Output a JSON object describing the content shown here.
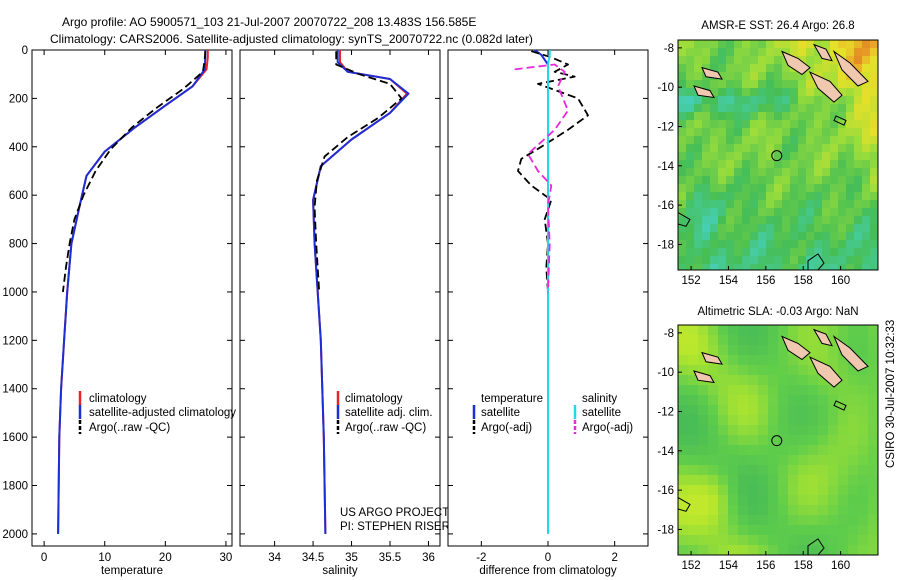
{
  "title": {
    "line1": "Argo profile: AO 5900571_103 21-Jul-2007 20070722_208 13.483S 156.585E",
    "line2": "Climatology: CARS2006. Satellite-adjusted climatology: synTS_20070722.nc (0.082d later)"
  },
  "credit": "CSIRO 30-Jul-2007 10:32:33",
  "project": {
    "line1": "US ARGO PROJECT",
    "line2": "PI: STEPHEN RISER"
  },
  "colors": {
    "clim": "#e8232a",
    "sat": "#1c2fd6",
    "argo": "#000000",
    "cyan": "#22d7e8",
    "magenta": "#e629d9"
  },
  "chart_data": [
    {
      "type": "line",
      "id": "temperature",
      "xlabel": "temperature",
      "xlim": [
        -2,
        31
      ],
      "xticks": [
        0,
        10,
        20,
        30
      ],
      "ylim": [
        2050,
        0
      ],
      "yticks": [
        0,
        200,
        400,
        600,
        800,
        1000,
        1200,
        1400,
        1600,
        1800,
        2000
      ],
      "legend": [
        "climatology",
        "satellite-adjusted climatology",
        "Argo(..raw -QC)"
      ],
      "series": [
        {
          "name": "climatology",
          "x": [
            27.0,
            27.0,
            26.8,
            24.5,
            20.0,
            15.0,
            10.0,
            7.0,
            5.8,
            4.5,
            3.8,
            3.3,
            2.8,
            2.5,
            2.4,
            2.3
          ],
          "depth": [
            0,
            30,
            80,
            150,
            230,
            320,
            420,
            520,
            650,
            800,
            1000,
            1200,
            1400,
            1600,
            1800,
            2000
          ]
        },
        {
          "name": "satellite-adjusted climatology",
          "x": [
            26.6,
            26.6,
            26.5,
            24.5,
            20.0,
            15.0,
            10.0,
            7.0,
            5.8,
            4.5,
            3.8,
            3.3,
            2.8,
            2.5,
            2.4,
            2.3
          ],
          "depth": [
            0,
            30,
            80,
            150,
            230,
            320,
            420,
            520,
            650,
            800,
            1000,
            1200,
            1400,
            1600,
            1800,
            2000
          ]
        },
        {
          "name": "Argo(..raw -QC)",
          "x": [
            26.6,
            26.5,
            26.2,
            23.0,
            18.5,
            14.5,
            11.0,
            8.5,
            6.5,
            5.0,
            4.2,
            3.6,
            3.1
          ],
          "depth": [
            5,
            40,
            90,
            160,
            240,
            320,
            410,
            500,
            600,
            700,
            800,
            900,
            1000
          ]
        }
      ]
    },
    {
      "type": "line",
      "id": "salinity",
      "xlabel": "salinity",
      "xlim": [
        33.55,
        36.15
      ],
      "xticks": [
        34,
        34.5,
        35,
        35.5,
        36
      ],
      "ylim": [
        2050,
        0
      ],
      "legend": [
        "climatology",
        "satellite adj. clim.",
        "Argo(..raw -QC)"
      ],
      "series": [
        {
          "name": "climatology",
          "x": [
            34.85,
            34.85,
            34.95,
            35.5,
            35.72,
            35.5,
            35.0,
            34.6,
            34.5,
            34.52,
            34.56,
            34.6,
            34.62,
            34.64,
            34.65,
            34.66
          ],
          "depth": [
            0,
            50,
            90,
            120,
            180,
            260,
            370,
            480,
            620,
            800,
            1000,
            1200,
            1400,
            1600,
            1800,
            2000
          ]
        },
        {
          "name": "satellite adj. clim.",
          "x": [
            34.82,
            34.82,
            34.95,
            35.5,
            35.74,
            35.5,
            35.0,
            34.6,
            34.5,
            34.52,
            34.56,
            34.6,
            34.62,
            34.64,
            34.65,
            34.66
          ],
          "depth": [
            0,
            50,
            90,
            120,
            180,
            260,
            370,
            480,
            620,
            800,
            1000,
            1200,
            1400,
            1600,
            1800,
            2000
          ]
        },
        {
          "name": "Argo(..raw -QC)",
          "x": [
            34.8,
            34.8,
            35.1,
            35.5,
            35.65,
            35.35,
            34.95,
            34.65,
            34.55,
            34.52,
            34.54,
            34.58
          ],
          "depth": [
            5,
            60,
            100,
            140,
            200,
            280,
            360,
            440,
            540,
            650,
            800,
            1000
          ]
        }
      ]
    },
    {
      "type": "line",
      "id": "difference",
      "xlabel": "difference from climatology",
      "xlim": [
        -3.0,
        3.0
      ],
      "xticks": [
        -2,
        0,
        2
      ],
      "ylim": [
        2050,
        0
      ],
      "legend": [
        "temperature",
        "satellite",
        "Argo(-adj)",
        "salinity",
        "satellite",
        "Argo(-adj)"
      ],
      "series": [
        {
          "name": "temperature satellite",
          "x": [
            -0.4,
            -0.2,
            0,
            0,
            0,
            0
          ],
          "depth": [
            0,
            20,
            60,
            200,
            600,
            1000
          ]
        },
        {
          "name": "temperature Argo(-adj)",
          "x": [
            -0.5,
            0.1,
            0.6,
            0.2,
            0.8,
            -0.3,
            0.9,
            1.2,
            0.6,
            -0.2,
            -0.8,
            -0.9,
            -0.5,
            0.1,
            -0.1,
            0,
            -0.05,
            0
          ],
          "depth": [
            5,
            30,
            60,
            90,
            110,
            140,
            200,
            270,
            330,
            400,
            450,
            500,
            560,
            620,
            700,
            800,
            900,
            1000
          ]
        },
        {
          "name": "salinity satellite",
          "x": [
            0.05,
            0.05,
            0,
            0,
            0
          ],
          "depth": [
            0,
            20,
            60,
            1000,
            2000
          ]
        },
        {
          "name": "salinity Argo(-adj)",
          "x": [
            -1.0,
            -0.4,
            0.2,
            0.5,
            0.3,
            0.6,
            0.2,
            -0.2,
            -0.6,
            -0.3,
            0.1,
            0,
            0.05,
            0
          ],
          "depth": [
            80,
            70,
            60,
            90,
            150,
            250,
            330,
            380,
            430,
            500,
            560,
            640,
            800,
            1000
          ]
        }
      ]
    },
    {
      "type": "heatmap",
      "id": "sst",
      "title": "AMSR-E SST: 26.4 Argo: 26.8",
      "xlim": [
        151.3,
        162.0
      ],
      "ylim": [
        -19.3,
        -7.6
      ],
      "xticks": [
        152,
        154,
        156,
        158,
        160
      ],
      "yticks": [
        -8,
        -10,
        -12,
        -14,
        -16,
        -18
      ],
      "marker": {
        "lon": 156.585,
        "lat": -13.483
      }
    },
    {
      "type": "heatmap",
      "id": "sla",
      "title": "Altimetric SLA: -0.03 Argo: NaN",
      "xlim": [
        151.3,
        162.0
      ],
      "ylim": [
        -19.3,
        -7.6
      ],
      "xticks": [
        152,
        154,
        156,
        158,
        160
      ],
      "yticks": [
        -8,
        -10,
        -12,
        -14,
        -16,
        -18
      ],
      "marker": {
        "lon": 156.585,
        "lat": -13.483
      }
    }
  ]
}
